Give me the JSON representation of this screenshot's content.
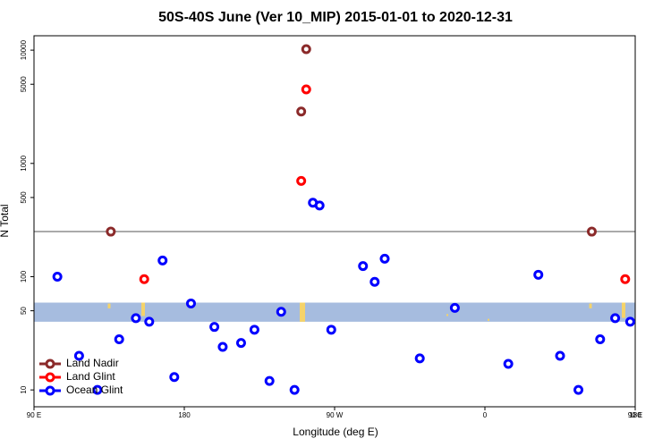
{
  "chart_data": {
    "type": "scatter",
    "title": "50S-40S June (Ver 10_MIP)   2015-01-01 to 2020-12-31",
    "x_label": "Longitude (deg E)",
    "y_label": "N Total",
    "xlim": [
      90,
      450
    ],
    "ylim": [
      7.1,
      13400
    ],
    "y_log": true,
    "xticks": [
      {
        "value": 90,
        "label": "90 E"
      },
      180,
      {
        "value": 270,
        "label": "90 W"
      },
      {
        "value": 360,
        "label": "0"
      },
      {
        "value": 450,
        "label": "90 E"
      },
      {
        "value": 540,
        "label": "180"
      }
    ],
    "yticks": [
      10,
      50,
      100,
      500,
      1000,
      5000,
      10000
    ],
    "hline": 250,
    "band": [
      40,
      59
    ],
    "legend": "bottom-left",
    "series": [
      {
        "name": "Land Nadir",
        "color": "#8b2a2a",
        "x": [
          136,
          253,
          250,
          424
        ],
        "values": [
          250,
          10200,
          2870,
          250
        ]
      },
      {
        "name": "Land Glint",
        "color": "#ff0000",
        "x": [
          156,
          253,
          250,
          444
        ],
        "values": [
          95,
          4500,
          700,
          95
        ]
      },
      {
        "name": "Ocean Glint",
        "color": "#0000ff",
        "x": [
          104,
          117,
          128,
          141,
          151,
          159,
          167,
          174,
          184,
          198,
          203,
          214,
          222,
          231,
          238,
          246,
          257,
          261,
          268,
          287,
          294,
          300,
          321,
          342,
          374,
          392,
          405,
          416,
          429,
          438,
          447
        ],
        "values": [
          100,
          20,
          10,
          28,
          43,
          40,
          139,
          13,
          58,
          36,
          24,
          26,
          34,
          12,
          49,
          10,
          450,
          425,
          34,
          124,
          90,
          144,
          19,
          53,
          17,
          104,
          20,
          10,
          28,
          43,
          40
        ]
      }
    ]
  }
}
